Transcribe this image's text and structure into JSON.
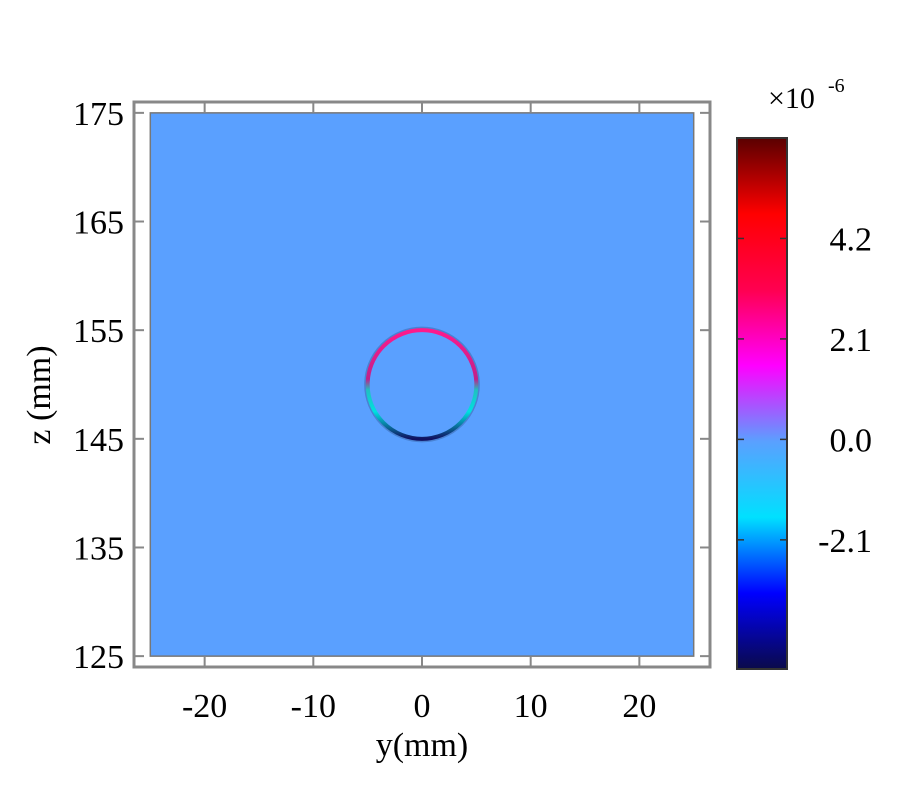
{
  "chart_data": {
    "type": "heatmap",
    "xlabel": "y(mm)",
    "ylabel": "z (mm)",
    "xlim": [
      -26.5,
      26.5
    ],
    "ylim": [
      124,
      176
    ],
    "domain": {
      "x": [
        -25,
        25
      ],
      "y": [
        125,
        175
      ]
    },
    "x_ticks": [
      -20,
      -10,
      0,
      10,
      20
    ],
    "y_ticks": [
      125,
      135,
      145,
      155,
      165,
      175
    ],
    "background_value": 0.0,
    "ring": {
      "center_y": 0,
      "center_z": 150,
      "radius": 5,
      "top_value": 4.2,
      "bottom_value": -4.2
    },
    "colorbar": {
      "multiplier": "×10",
      "exponent": "-6",
      "min": -4.8,
      "max": 6.3,
      "ticks": [
        -2.1,
        0.0,
        2.1,
        4.2
      ],
      "tick_labels": [
        "-2.1",
        "0.0",
        "2.1",
        "4.2"
      ],
      "colormap": [
        "#0a0a4a",
        "#0000ff",
        "#00e0ff",
        "#5aa0ff",
        "#ff00ff",
        "#ff0050",
        "#ff0000",
        "#5a0000"
      ]
    },
    "background_color": "#5aa0ff"
  }
}
